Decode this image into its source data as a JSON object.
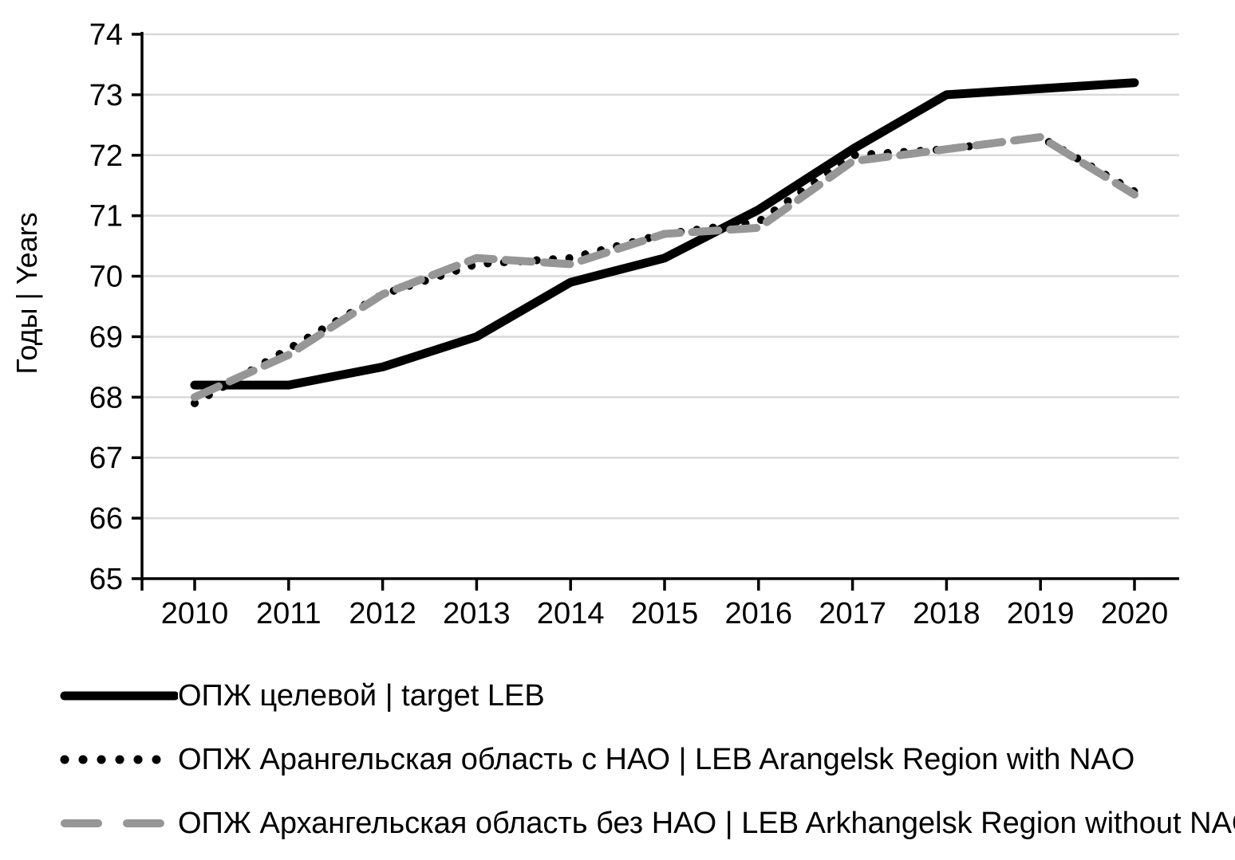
{
  "chart_data": {
    "type": "line",
    "title": "",
    "xlabel": "",
    "ylabel": "Годы | Years",
    "ylim": [
      65,
      74
    ],
    "yticks": [
      "65",
      "66",
      "67",
      "68",
      "69",
      "70",
      "71",
      "72",
      "73",
      "74"
    ],
    "categories": [
      "2010",
      "2011",
      "2012",
      "2013",
      "2014",
      "2015",
      "2016",
      "2017",
      "2018",
      "2019",
      "2020"
    ],
    "grid": true,
    "legend_position": "bottom-left",
    "gridline_color": "#d9d9d9",
    "axis_color": "#000000",
    "series": [
      {
        "key": "target-leb",
        "name": "ОПЖ целевой | target LEB",
        "style": "solid",
        "color": "#000000",
        "values": [
          68.2,
          68.2,
          68.5,
          69.0,
          69.9,
          70.3,
          71.1,
          72.1,
          73.0,
          73.1,
          73.2
        ]
      },
      {
        "key": "leb-with-nao",
        "name": "ОПЖ Арангельская область с НАО | LEB Arangelsk Region with NAO",
        "style": "dotted",
        "color": "#000000",
        "values": [
          67.9,
          68.8,
          69.7,
          70.2,
          70.3,
          70.7,
          70.9,
          72.0,
          72.1,
          72.3,
          71.4
        ]
      },
      {
        "key": "leb-without-nao",
        "name": "ОПЖ Архангельская область без НАО | LEB Arkhangelsk Region without NAO",
        "style": "dashed",
        "color": "#969696",
        "values": [
          68.0,
          68.7,
          69.7,
          70.3,
          70.2,
          70.7,
          70.8,
          71.9,
          72.1,
          72.3,
          71.35
        ]
      }
    ]
  }
}
